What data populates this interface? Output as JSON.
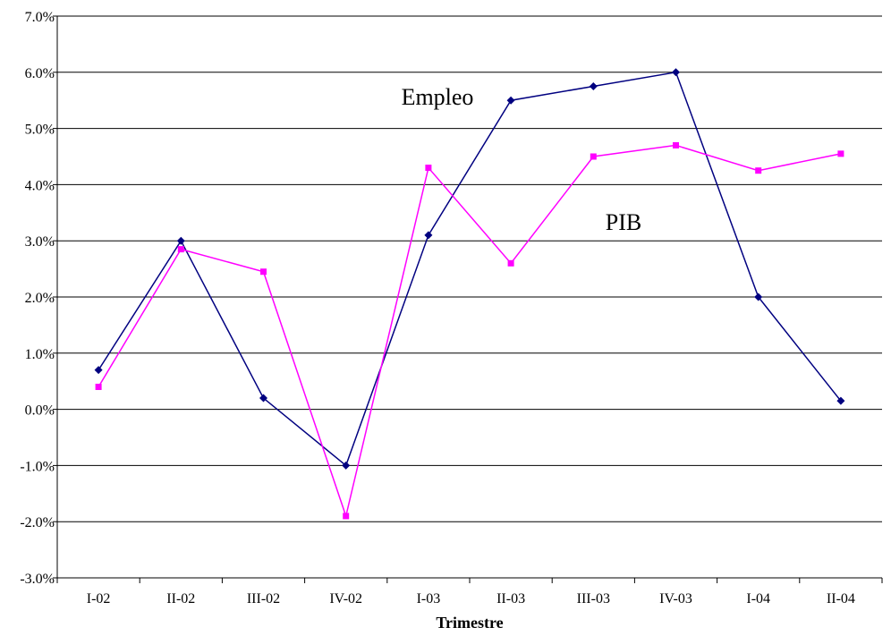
{
  "chart_data": {
    "type": "line",
    "title": "",
    "xlabel": "Trimestre",
    "ylabel": "",
    "categories": [
      "I-02",
      "II-02",
      "III-02",
      "IV-02",
      "I-03",
      "II-03",
      "III-03",
      "IV-03",
      "I-04",
      "II-04"
    ],
    "ylim": [
      -3.0,
      7.0
    ],
    "ytick_step": 1.0,
    "y_tick_format": "percent_1dp",
    "grid": "horizontal",
    "legend": "none",
    "series": [
      {
        "name": "Empleo",
        "color": "#000080",
        "marker": "diamond",
        "values": [
          0.7,
          3.0,
          0.2,
          -1.0,
          3.1,
          5.5,
          5.75,
          6.0,
          2.0,
          0.15
        ]
      },
      {
        "name": "PIB",
        "color": "#ff00ff",
        "marker": "square",
        "values": [
          0.4,
          2.85,
          2.45,
          -1.9,
          4.3,
          2.6,
          4.5,
          4.7,
          4.25,
          4.55
        ]
      }
    ]
  }
}
